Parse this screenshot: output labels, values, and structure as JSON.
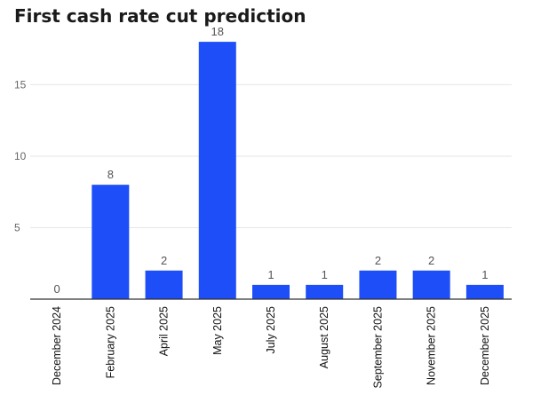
{
  "chart_data": {
    "type": "bar",
    "title": "First cash rate cut prediction",
    "xlabel": "",
    "ylabel": "",
    "categories": [
      "December 2024",
      "February 2025",
      "April 2025",
      "May 2025",
      "July 2025",
      "August 2025",
      "September 2025",
      "November 2025",
      "December 2025"
    ],
    "values": [
      0,
      8,
      2,
      18,
      1,
      1,
      2,
      2,
      1
    ],
    "ylim": [
      0,
      19
    ],
    "yticks": [
      5,
      10,
      15
    ],
    "grid": true,
    "bar_color": "#1d4ef7"
  }
}
